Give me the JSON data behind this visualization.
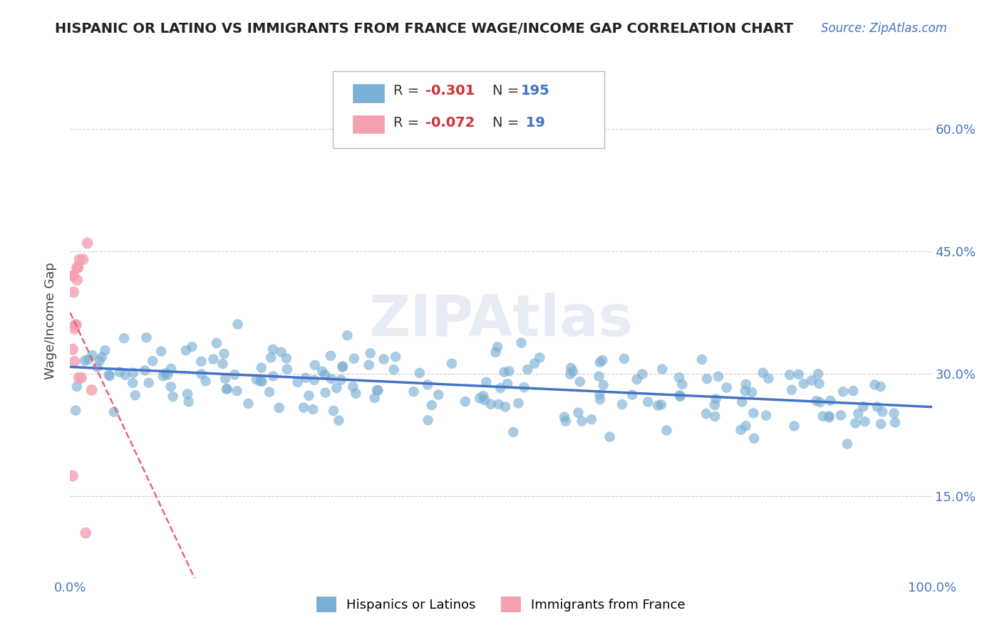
{
  "title": "HISPANIC OR LATINO VS IMMIGRANTS FROM FRANCE WAGE/INCOME GAP CORRELATION CHART",
  "source": "Source: ZipAtlas.com",
  "ylabel": "Wage/Income Gap",
  "background_color": "#ffffff",
  "grid_color": "#cccccc",
  "xlim": [
    0.0,
    1.0
  ],
  "ylim": [
    0.05,
    0.68
  ],
  "yticks": [
    0.15,
    0.3,
    0.45,
    0.6
  ],
  "ytick_labels": [
    "15.0%",
    "30.0%",
    "45.0%",
    "60.0%"
  ],
  "ytick_color": "#4472c4",
  "xticks": [
    0.0,
    1.0
  ],
  "xtick_labels": [
    "0.0%",
    "100.0%"
  ],
  "xtick_color": "#4472c4",
  "series1_name": "Hispanics or Latinos",
  "series1_color": "#7bafd4",
  "series1_line_color": "#4472c4",
  "series2_name": "Immigrants from France",
  "series2_color": "#f4a0b0",
  "series2_line_color": "#e8627a",
  "watermark": "ZIPAtlas",
  "seed": 42
}
